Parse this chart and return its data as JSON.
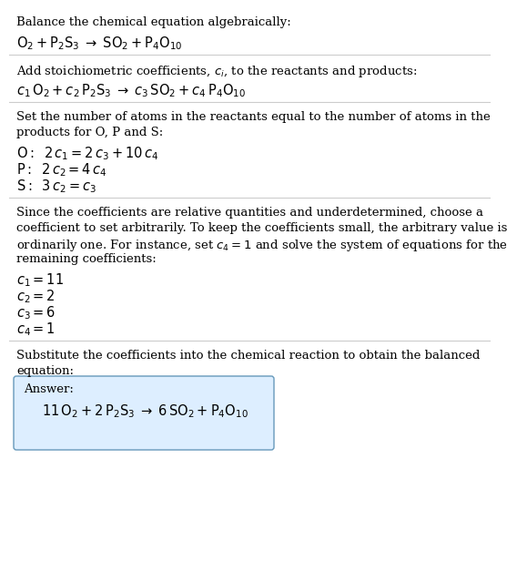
{
  "sec1_text": "Balance the chemical equation algebraically:",
  "sec1_eq": "$\\mathrm{O_2 + P_2S_3 \\;\\rightarrow\\; SO_2 + P_4O_{10}}$",
  "sec2_text": "Add stoichiometric coefficients, $c_i$, to the reactants and products:",
  "sec2_eq": "$c_1\\,\\mathrm{O_2} + c_2\\,\\mathrm{P_2S_3} \\;\\rightarrow\\; c_3\\,\\mathrm{SO_2} + c_4\\,\\mathrm{P_4O_{10}}$",
  "sec3_text1": "Set the number of atoms in the reactants equal to the number of atoms in the",
  "sec3_text2": "products for O, P and S:",
  "sec3_eq1": "$\\mathrm{O:}\\;\\; 2\\,c_1 = 2\\,c_3 + 10\\,c_4$",
  "sec3_eq2": "$\\mathrm{P:}\\;\\; 2\\,c_2 = 4\\,c_4$",
  "sec3_eq3": "$\\mathrm{S:}\\;\\; 3\\,c_2 = c_3$",
  "sec4_text1": "Since the coefficients are relative quantities and underdetermined, choose a",
  "sec4_text2": "coefficient to set arbitrarily. To keep the coefficients small, the arbitrary value is",
  "sec4_text3": "ordinarily one. For instance, set $c_4 = 1$ and solve the system of equations for the",
  "sec4_text4": "remaining coefficients:",
  "sec4_eq1": "$c_1 = 11$",
  "sec4_eq2": "$c_2 = 2$",
  "sec4_eq3": "$c_3 = 6$",
  "sec4_eq4": "$c_4 = 1$",
  "sec5_text1": "Substitute the coefficients into the chemical reaction to obtain the balanced",
  "sec5_text2": "equation:",
  "ans_label": "Answer:",
  "ans_eq": "$11\\,\\mathrm{O_2} + 2\\,\\mathrm{P_2S_3} \\;\\rightarrow\\; 6\\,\\mathrm{SO_2} + \\mathrm{P_4O_{10}}$",
  "bg_color": "#ffffff",
  "text_color": "#000000",
  "divider_color": "#cccccc",
  "ans_box_bg": "#ddeeff",
  "ans_box_border": "#6699bb",
  "fs_text": 9.5,
  "fs_eq": 10.5
}
